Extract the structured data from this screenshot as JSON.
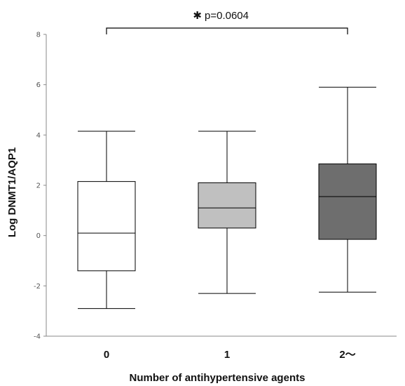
{
  "chart_data": {
    "type": "boxplot",
    "xlabel": "Number of antihypertensive agents",
    "ylabel": "Log DNMT1/AQP1",
    "ylim": [
      -4,
      8
    ],
    "yticks": [
      -4,
      -2,
      0,
      2,
      4,
      6,
      8
    ],
    "ytick_labels": [
      "-4",
      "-2",
      "0",
      "2",
      "4",
      "6",
      "8"
    ],
    "categories": [
      "0",
      "1",
      "2〜"
    ],
    "boxes": [
      {
        "category": "0",
        "min": -2.9,
        "q1": -1.4,
        "median": 0.1,
        "q3": 2.15,
        "max": 4.15,
        "fill": "#ffffff"
      },
      {
        "category": "1",
        "min": -2.3,
        "q1": 0.3,
        "median": 1.1,
        "q3": 2.1,
        "max": 4.15,
        "fill": "#c0c0c0"
      },
      {
        "category": "2〜",
        "min": -2.25,
        "q1": -0.15,
        "median": 1.55,
        "q3": 2.85,
        "max": 5.9,
        "fill": "#6e6e6e"
      }
    ],
    "annotation": {
      "text": "p=0.0604",
      "marker": "✱",
      "from_category": "0",
      "to_category": "2〜"
    },
    "grid": false
  }
}
